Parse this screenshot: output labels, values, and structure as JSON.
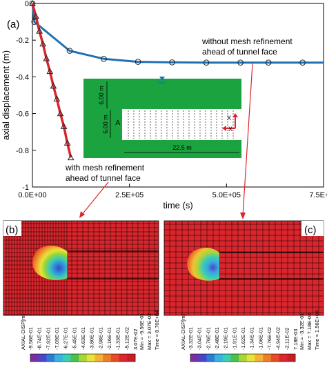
{
  "panels": {
    "a": "(a)",
    "b": "(b)",
    "c": "(c)"
  },
  "chart_data": {
    "type": "line",
    "xlabel": "time (s)",
    "ylabel": "axial displacement (m)",
    "xlim": [
      0,
      750000
    ],
    "ylim": [
      -1,
      0
    ],
    "xticks": [
      0,
      250000,
      500000,
      750000
    ],
    "xtick_labels": [
      "0.0E+00",
      "2.5E+05",
      "5.0E+05",
      "7.5E+05"
    ],
    "yticks": [
      0,
      -0.2,
      -0.4,
      -0.6,
      -0.8,
      -1
    ],
    "ytick_labels": [
      "0",
      "-0.2",
      "-0.4",
      "-0.6",
      "-0.8",
      "-1"
    ],
    "grid": false,
    "series": [
      {
        "name": "without mesh refinement ahead of tunnel face",
        "color": "#1f6fb5",
        "marker": "circle",
        "x": [
          0,
          5000,
          96000,
          184000,
          272000,
          360000,
          448000,
          536000,
          608000,
          696000,
          750000
        ],
        "y": [
          0,
          -0.1,
          -0.258,
          -0.302,
          -0.318,
          -0.321,
          -0.322,
          -0.322,
          -0.322,
          -0.322,
          -0.322
        ]
      },
      {
        "name": "with mesh refinement ahead of tunnel face",
        "color": "#d9262c",
        "marker": "triangle",
        "x": [
          0,
          9000,
          18000,
          27000,
          36000,
          45000,
          54000,
          63000,
          72000,
          81000,
          90000,
          99000
        ],
        "y": [
          0,
          -0.07,
          -0.15,
          -0.22,
          -0.3,
          -0.37,
          -0.45,
          -0.52,
          -0.6,
          -0.67,
          -0.76,
          -0.84
        ]
      }
    ],
    "annotations": [
      {
        "lines": [
          "without mesh refinement",
          "ahead of tunnel face"
        ]
      },
      {
        "lines": [
          "with mesh refinement",
          "ahead of tunnel face"
        ]
      }
    ],
    "inset": {
      "dims": [
        "6.00 m",
        "6.00 m",
        "22.5 m"
      ],
      "point_label": "A",
      "axis_labels": [
        "X",
        "X"
      ]
    }
  },
  "legend_b": {
    "title": "AXIAL-DISP[m]",
    "values": [
      "-9.56E-01",
      "-8.74E-01",
      "-7.92E-01",
      "-7.09E-01",
      "-6.27E-01",
      "-5.45E-01",
      "-4.63E-01",
      "-3.80E-01",
      "-2.98E-01",
      "-2.16E-01",
      "-1.33E-01",
      "-5.12E-02",
      "3.07E-02"
    ],
    "stats": [
      "Min = -9.56E-01",
      "Max = 3.07E-02",
      "Time = 8.70E+04"
    ]
  },
  "legend_c": {
    "title": "AXIAL-DISP[m]",
    "values": [
      "-3.32E-01",
      "-3.04E-01",
      "-2.76E-01",
      "-2.48E-01",
      "-2.19E-01",
      "-1.91E-01",
      "-1.62E-01",
      "-1.34E-01",
      "-1.06E-01",
      "-7.76E-02",
      "-4.94E-02",
      "-2.11E-02",
      "7.18E-03"
    ],
    "stats": [
      "Min = -3.32E-01",
      "Max = 7.18E-03",
      "Time = 1.56E+06"
    ]
  },
  "colorbar": [
    "#7a2fa0",
    "#4a45c9",
    "#2f7bd6",
    "#38b3df",
    "#3ccdb5",
    "#4bc04b",
    "#a8d63a",
    "#e8e23a",
    "#f1b331",
    "#ee7d2a",
    "#e64b22",
    "#d9262c",
    "#c81e23"
  ]
}
